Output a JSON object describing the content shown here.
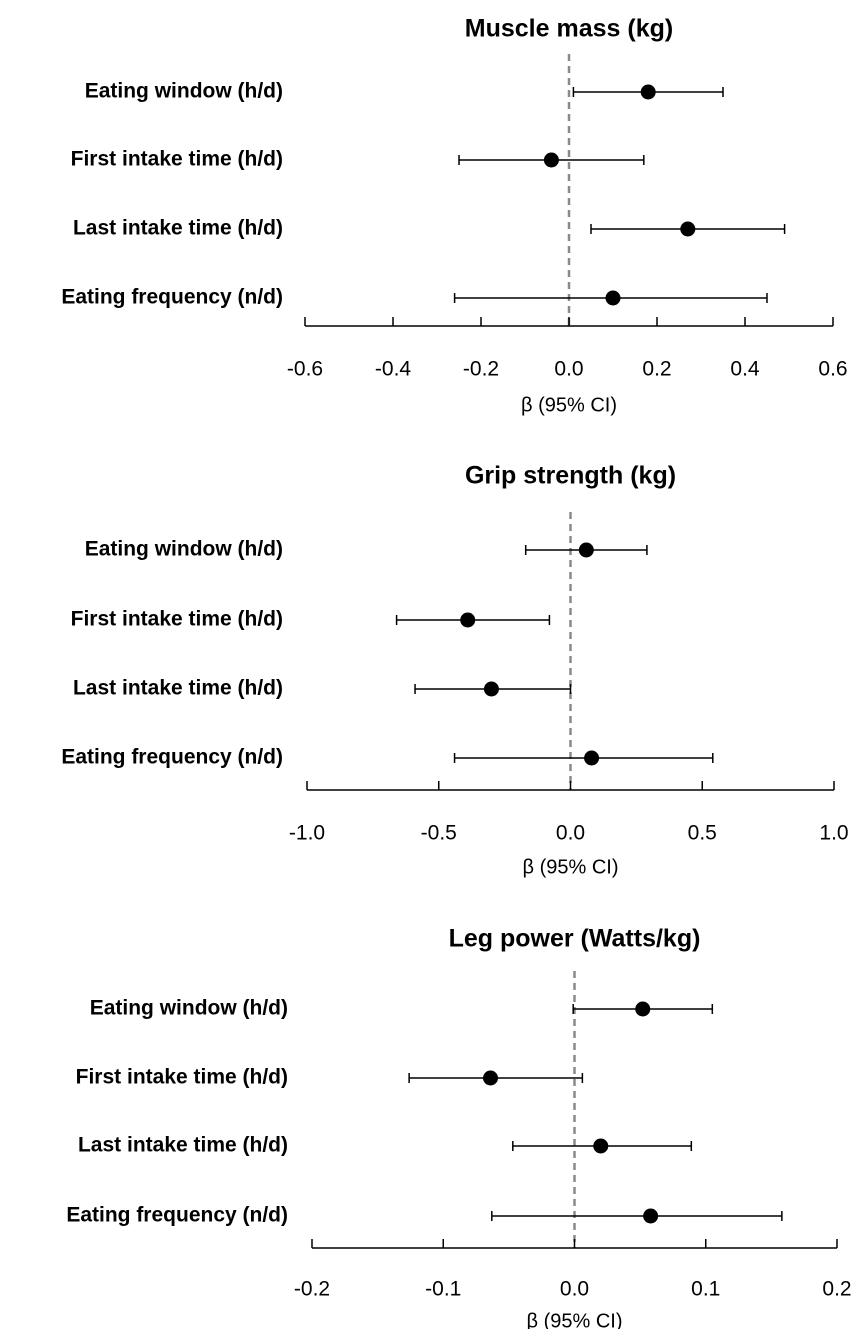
{
  "chart_data": [
    {
      "type": "forest",
      "title": "Muscle mass (kg)",
      "xlabel": "β (95% CI)",
      "xlim": [
        -0.6,
        0.6
      ],
      "ticks": [
        -0.6,
        -0.4,
        -0.2,
        0.0,
        0.2,
        0.4,
        0.6
      ],
      "tick_labels": [
        "-0.6",
        "-0.4",
        "-0.2",
        "0.0",
        "0.2",
        "0.4",
        "0.6"
      ],
      "reference_line": 0,
      "rows": [
        {
          "label": "Eating window (h/d)",
          "estimate": 0.18,
          "lower": 0.01,
          "upper": 0.35
        },
        {
          "label": "First intake time (h/d)",
          "estimate": -0.04,
          "lower": -0.25,
          "upper": 0.17
        },
        {
          "label": "Last intake time (h/d)",
          "estimate": 0.27,
          "lower": 0.05,
          "upper": 0.49
        },
        {
          "label": "Eating frequency (n/d)",
          "estimate": 0.1,
          "lower": -0.26,
          "upper": 0.45
        }
      ]
    },
    {
      "type": "forest",
      "title": "Grip strength (kg)",
      "xlabel": "β (95% CI)",
      "xlim": [
        -1.0,
        1.0
      ],
      "ticks": [
        -1.0,
        -0.5,
        0.0,
        0.5,
        1.0
      ],
      "tick_labels": [
        "-1.0",
        "-0.5",
        "0.0",
        "0.5",
        "1.0"
      ],
      "reference_line": 0,
      "rows": [
        {
          "label": "Eating window (h/d)",
          "estimate": 0.06,
          "lower": -0.17,
          "upper": 0.29
        },
        {
          "label": "First intake time (h/d)",
          "estimate": -0.39,
          "lower": -0.66,
          "upper": -0.08
        },
        {
          "label": "Last intake time (h/d)",
          "estimate": -0.3,
          "lower": -0.59,
          "upper": 0.0
        },
        {
          "label": "Eating frequency (n/d)",
          "estimate": 0.08,
          "lower": -0.44,
          "upper": 0.54
        }
      ]
    },
    {
      "type": "forest",
      "title": "Leg power (Watts/kg)",
      "xlabel": "β (95% CI)",
      "xlim": [
        -0.2,
        0.2
      ],
      "ticks": [
        -0.2,
        -0.1,
        0.0,
        0.1,
        0.2
      ],
      "tick_labels": [
        "-0.2",
        "-0.1",
        "0.0",
        "0.1",
        "0.2"
      ],
      "reference_line": 0,
      "rows": [
        {
          "label": "Eating window (h/d)",
          "estimate": 0.052,
          "lower": -0.001,
          "upper": 0.105
        },
        {
          "label": "First intake time (h/d)",
          "estimate": -0.064,
          "lower": -0.126,
          "upper": 0.006
        },
        {
          "label": "Last intake time (h/d)",
          "estimate": 0.02,
          "lower": -0.047,
          "upper": 0.089
        },
        {
          "label": "Eating frequency (n/d)",
          "estimate": 0.058,
          "lower": -0.063,
          "upper": 0.158
        }
      ]
    }
  ]
}
